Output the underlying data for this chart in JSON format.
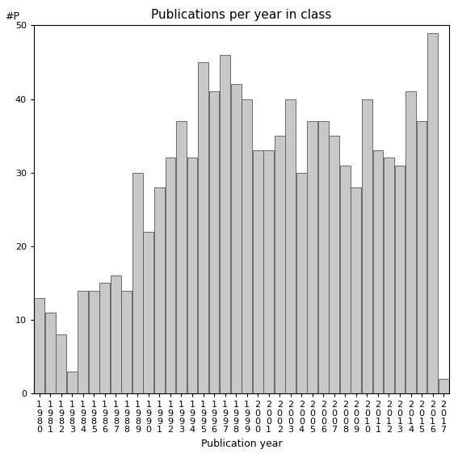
{
  "title": "Publications per year in class",
  "xlabel": "Publication year",
  "ylabel": "#P",
  "years": [
    "1980",
    "1981",
    "1982",
    "1983",
    "1984",
    "1985",
    "1986",
    "1987",
    "1988",
    "1989",
    "1990",
    "1991",
    "1992",
    "1993",
    "1994",
    "1995",
    "1996",
    "1997",
    "1998",
    "1999",
    "2000",
    "2001",
    "2002",
    "2003",
    "2004",
    "2005",
    "2006",
    "2007",
    "2008",
    "2009",
    "2010",
    "2011",
    "2012",
    "2013",
    "2014",
    "2015",
    "2016",
    "2017"
  ],
  "values": [
    13,
    11,
    8,
    3,
    14,
    14,
    15,
    16,
    14,
    30,
    22,
    28,
    32,
    37,
    32,
    45,
    41,
    46,
    42,
    40,
    33,
    33,
    35,
    40,
    30,
    37,
    37,
    35,
    31,
    28,
    40,
    33,
    32,
    31,
    41,
    37,
    49,
    2
  ],
  "bar_color": "#c8c8c8",
  "bar_edge_color": "#555555",
  "ylim": [
    0,
    50
  ],
  "yticks": [
    0,
    10,
    20,
    30,
    40,
    50
  ],
  "background_color": "#ffffff",
  "title_fontsize": 11,
  "label_fontsize": 9,
  "tick_fontsize": 8
}
